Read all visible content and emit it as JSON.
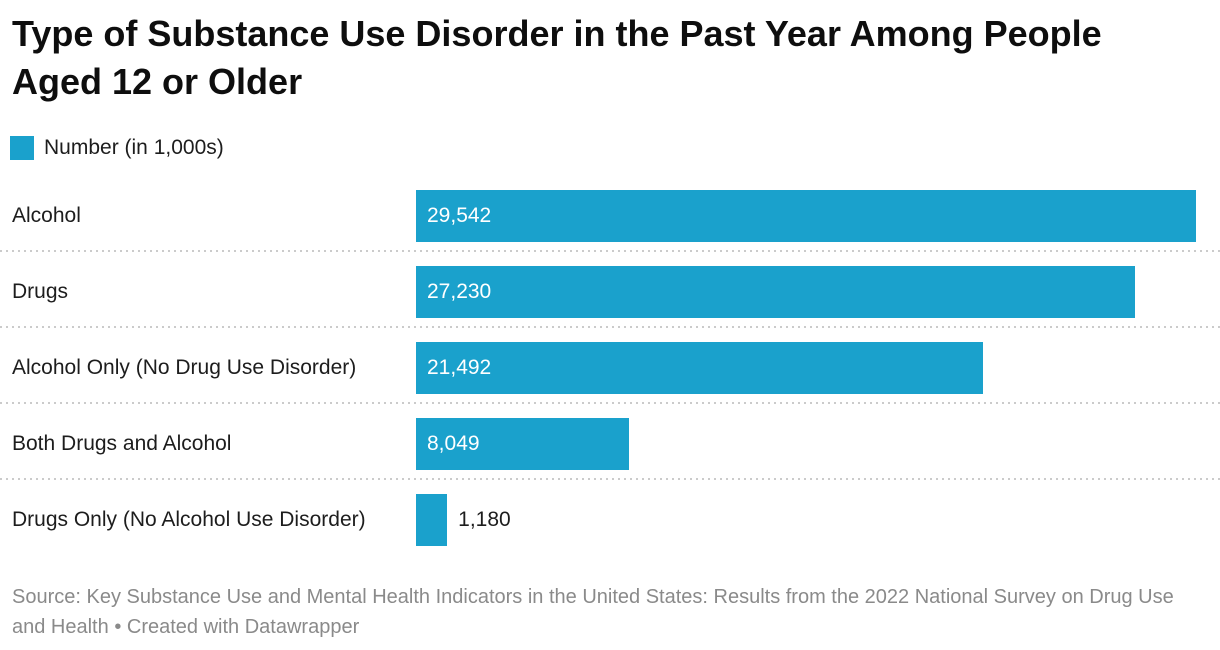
{
  "title": "Type of Substance Use Disorder in the Past Year Among People Aged 12 or Older",
  "legend": {
    "label": "Number (in 1,000s)",
    "swatch_color": "#1aa1cc"
  },
  "chart_data": {
    "type": "bar",
    "orientation": "horizontal",
    "title": "Type of Substance Use Disorder in the Past Year Among People Aged 12 or Older",
    "series_label": "Number (in 1,000s)",
    "categories": [
      "Alcohol",
      "Drugs",
      "Alcohol Only (No Drug Use Disorder)",
      "Both Drugs and Alcohol",
      "Drugs Only (No Alcohol Use Disorder)"
    ],
    "values": [
      29542,
      27230,
      21492,
      8049,
      1180
    ],
    "value_labels": [
      "29,542",
      "27,230",
      "21,492",
      "8,049",
      "1,180"
    ],
    "xlim": [
      0,
      29542
    ],
    "grid": false,
    "legend_position": "top-left",
    "bar_color": "#1aa1cc",
    "value_label_placement": "inside bar start; outside for smallest bar"
  },
  "footer": {
    "source": "Source: Key Substance Use and Mental Health Indicators in the United States: Results from the 2022 National Survey on Drug Use and Health",
    "separator": "•",
    "attribution": "Created with Datawrapper"
  }
}
